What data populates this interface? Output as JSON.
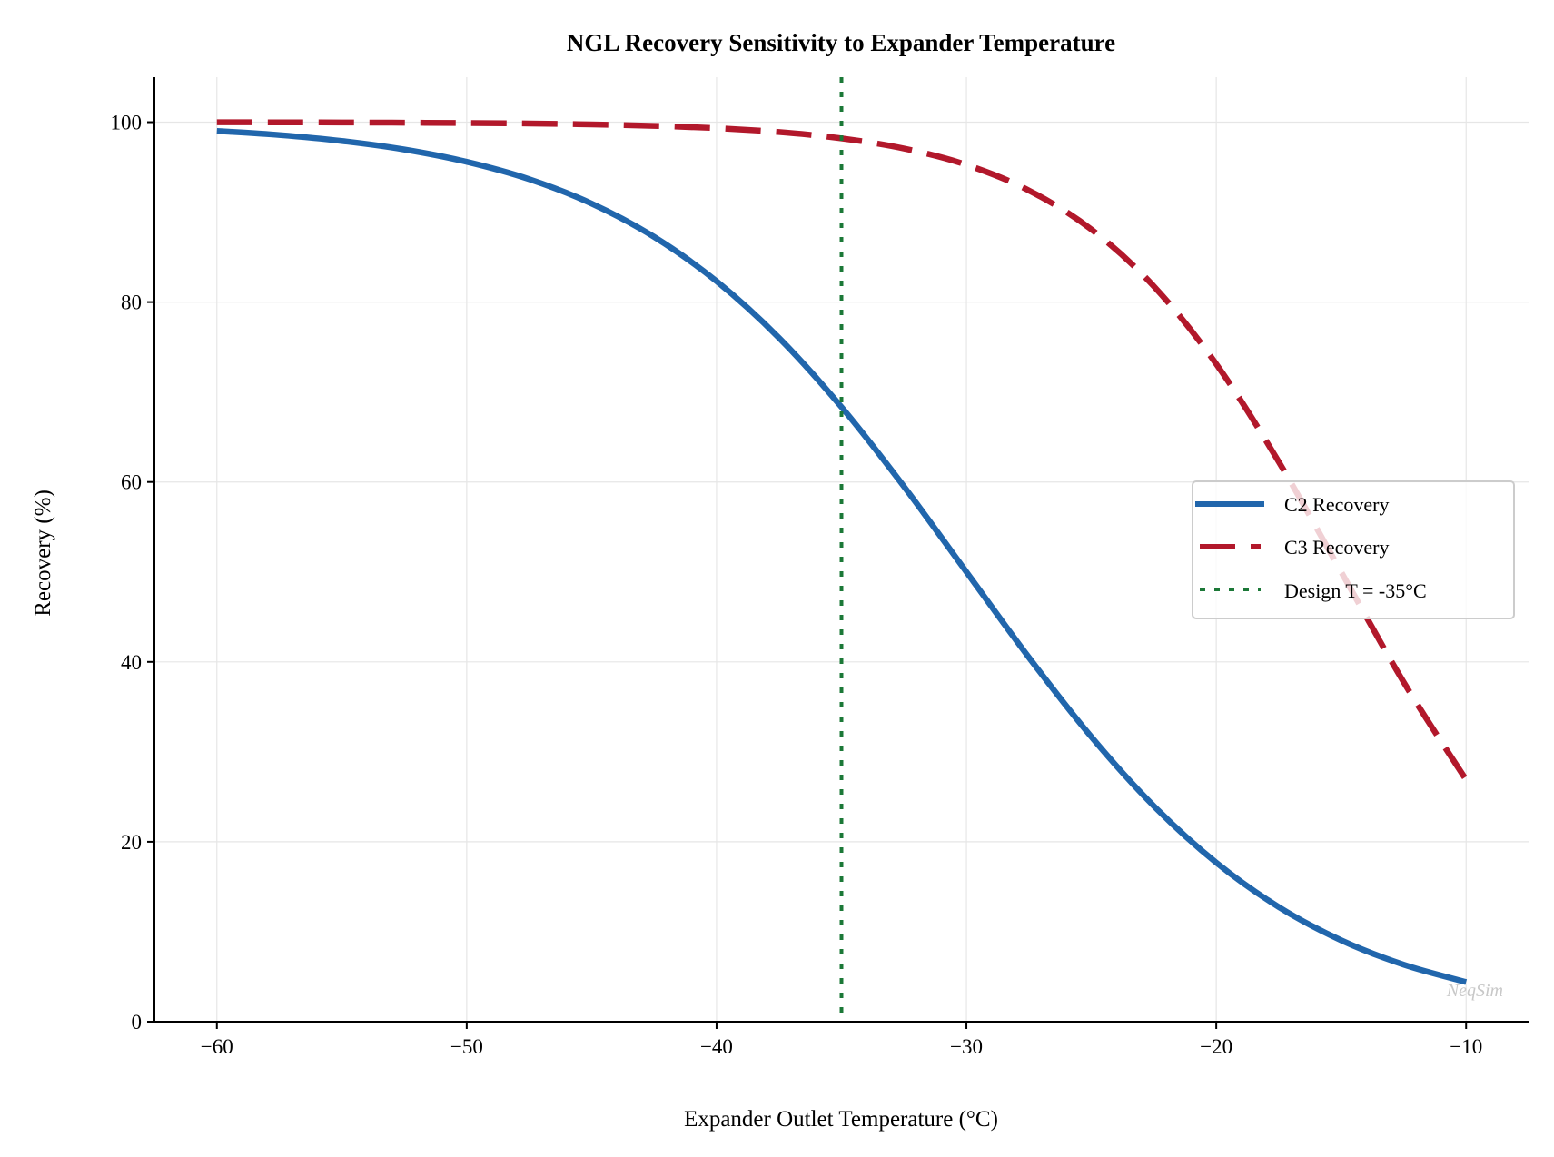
{
  "chart_data": {
    "type": "line",
    "title": "NGL Recovery Sensitivity to Expander Temperature",
    "xlabel": "Expander Outlet Temperature (°C)",
    "ylabel": "Recovery (%)",
    "xlim": [
      -62.5,
      -7.5
    ],
    "ylim": [
      0,
      105
    ],
    "xticks": [
      -60,
      -50,
      -40,
      -30,
      -20,
      -10
    ],
    "xtick_labels": [
      "−60",
      "−50",
      "−40",
      "−30",
      "−20",
      "−10"
    ],
    "yticks": [
      0,
      20,
      40,
      60,
      80,
      100
    ],
    "ytick_labels": [
      "0",
      "20",
      "40",
      "60",
      "80",
      "100"
    ],
    "grid": true,
    "legend_position": "center-right",
    "x": [
      -60,
      -57.5,
      -55,
      -52.5,
      -50,
      -47.5,
      -45,
      -42.5,
      -40,
      -37.5,
      -35,
      -32.5,
      -30,
      -27.5,
      -25,
      -22.5,
      -20,
      -17.5,
      -15,
      -12.5,
      -10
    ],
    "series": [
      {
        "name": "C2 Recovery",
        "color": "#2166ac",
        "style": "solid",
        "values": [
          99.02,
          98.57,
          97.91,
          96.96,
          95.59,
          93.66,
          90.95,
          87.25,
          82.32,
          76.02,
          68.33,
          59.5,
          50.0,
          40.5,
          31.67,
          23.98,
          17.68,
          12.75,
          9.05,
          6.34,
          4.41
        ]
      },
      {
        "name": "C3 Recovery",
        "color": "#b2182b",
        "style": "dashed",
        "values": [
          99.99,
          99.98,
          99.97,
          99.94,
          99.91,
          99.85,
          99.75,
          99.59,
          99.33,
          98.9,
          98.2,
          97.07,
          95.26,
          92.41,
          88.08,
          81.76,
          73.11,
          62.25,
          50.0,
          37.75,
          26.89
        ]
      }
    ],
    "vline": {
      "name": "Design T = -35°C",
      "x": -35,
      "color": "#1b7837",
      "style": "dotted"
    },
    "watermark": "NeqSim"
  }
}
